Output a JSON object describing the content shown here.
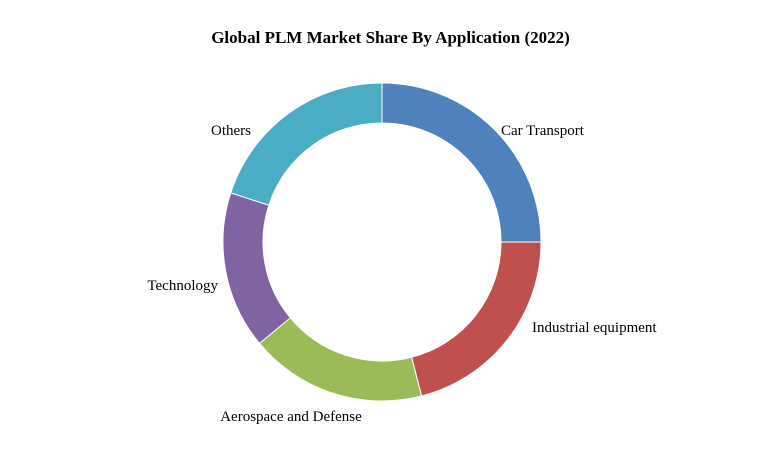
{
  "chart_data": {
    "type": "pie",
    "title": "Global PLM Market Share By Application (2022)",
    "categories": [
      "Car Transport",
      "Industrial equipment",
      "Aerospace and Defense",
      "Technology",
      "Others"
    ],
    "values": [
      25,
      21,
      18,
      16,
      20
    ],
    "colors": [
      "#4F81BD",
      "#C0504D",
      "#9BBB59",
      "#8064A2",
      "#4BACC6"
    ],
    "legend": "none"
  }
}
